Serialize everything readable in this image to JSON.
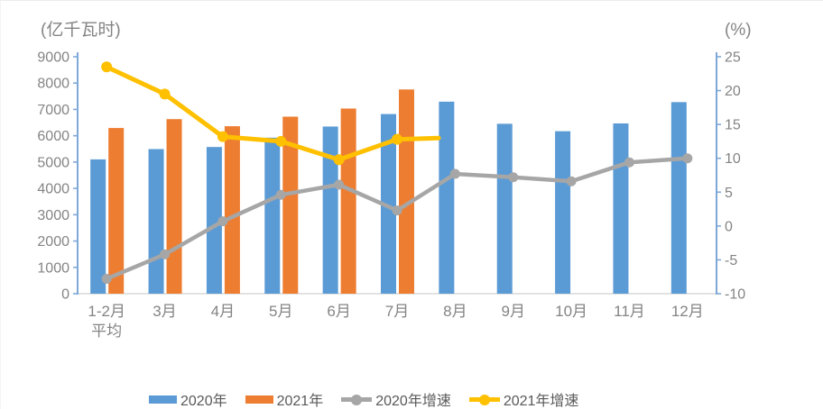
{
  "page": {
    "background": "#ffffff"
  },
  "colors": {
    "axis_line": "#7FA8D9",
    "x_axis_line": "#D9D9D9",
    "tick_text": "#848484",
    "legend_text": "#595959"
  },
  "chart_data": {
    "type": "bar",
    "subtype": "bar+line combo, dual axis",
    "title": "",
    "categories": [
      "1-2月\n平均",
      "3月",
      "4月",
      "5月",
      "6月",
      "7月",
      "8月",
      "9月",
      "10月",
      "11月",
      "12月"
    ],
    "left_axis": {
      "title": "(亿千瓦时)",
      "min": 0,
      "max": 9000,
      "step": 1000
    },
    "right_axis": {
      "title": "(%)",
      "min": -10,
      "max": 25,
      "step": 5
    },
    "grid": "off",
    "legend_position": "bottom",
    "series": [
      {
        "name": "2020年",
        "type": "bar",
        "axis": "left",
        "color": "#5B9BD5",
        "values": [
          5102,
          5493,
          5572,
          5926,
          6350,
          6824,
          7294,
          6454,
          6172,
          6467,
          7277
        ]
      },
      {
        "name": "2021年",
        "type": "bar",
        "axis": "left",
        "color": "#ED7D31",
        "values": [
          6294,
          6631,
          6361,
          6724,
          7033,
          7758,
          null,
          null,
          null,
          null,
          null
        ]
      },
      {
        "name": "2020年增速",
        "type": "line",
        "axis": "right",
        "color": "#A6A6A6",
        "line_width": 4.5,
        "marker_radius": 5.5,
        "values": [
          -7.8,
          -4.2,
          0.7,
          4.6,
          6.1,
          2.3,
          7.7,
          7.2,
          6.6,
          9.4,
          10.0
        ]
      },
      {
        "name": "2021年增速",
        "type": "line",
        "axis": "right",
        "color": "#FFC000",
        "line_width": 5,
        "marker_radius": 6,
        "trailing_stub": true,
        "values": [
          23.5,
          19.5,
          13.2,
          12.5,
          9.8,
          12.8,
          null,
          null,
          null,
          null,
          null
        ]
      }
    ]
  }
}
